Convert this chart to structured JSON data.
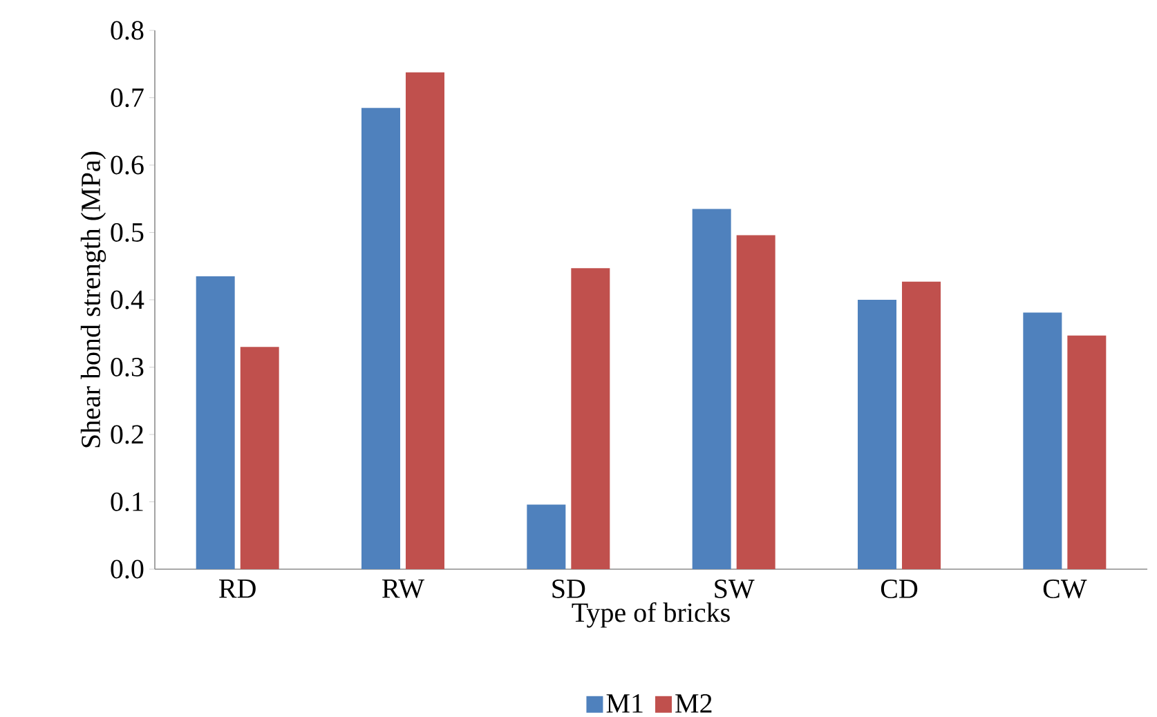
{
  "chart_data": {
    "type": "bar",
    "xlabel": "Type of bricks",
    "ylabel": "Shear bond strength (MPa)",
    "categories": [
      "RD",
      "RW",
      "SD",
      "SW",
      "CD",
      "CW"
    ],
    "series": [
      {
        "name": "M1",
        "color": "#4f81bd",
        "values": [
          0.435,
          0.685,
          0.096,
          0.535,
          0.4,
          0.381
        ]
      },
      {
        "name": "M2",
        "color": "#c0504d",
        "values": [
          0.33,
          0.738,
          0.447,
          0.496,
          0.427,
          0.347
        ]
      }
    ],
    "ylim": [
      0,
      0.8
    ],
    "yticks": [
      {
        "value": 0,
        "label": "0.0"
      },
      0.1,
      0.2,
      0.3,
      0.4,
      0.5,
      0.6,
      0.7,
      0.8
    ],
    "grid": false,
    "legend": "bottom"
  }
}
